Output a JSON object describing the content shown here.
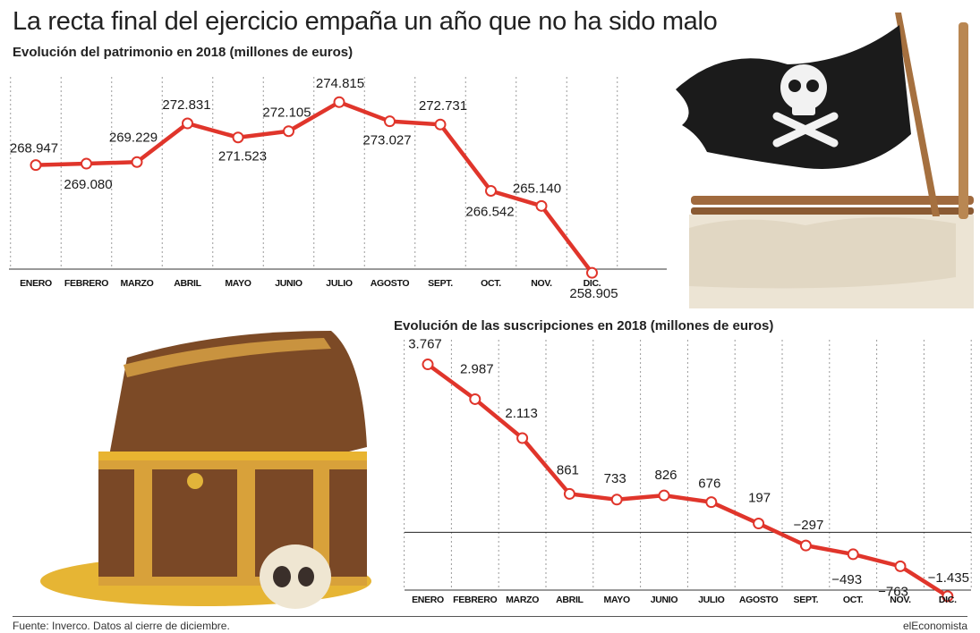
{
  "title": "La recta final del ejercicio empaña un año que no ha sido malo",
  "footer": {
    "source": "Fuente: Inverco. Datos al cierre de diciembre.",
    "brand": "elEconomista"
  },
  "illustrations": {
    "flag": "pirate-flag-icon",
    "chest": "treasure-chest-icon",
    "skull": "skull-icon"
  },
  "colors": {
    "line": "#e0352b",
    "marker_fill": "#ffffff",
    "grid": "#9a9a9a"
  },
  "chart_data": [
    {
      "type": "line",
      "title": "Evolución del patrimonio en 2018 (millones de euros)",
      "xlabel": "",
      "ylabel": "",
      "categories": [
        "ENERO",
        "FEBRERO",
        "MARZO",
        "ABRIL",
        "MAYO",
        "JUNIO",
        "JULIO",
        "AGOSTO",
        "SEPT.",
        "OCT.",
        "NOV.",
        "DIC."
      ],
      "values": [
        268947,
        269080,
        269229,
        272831,
        271523,
        272105,
        274815,
        273027,
        272731,
        266542,
        265140,
        258905
      ],
      "labels": [
        "268.947",
        "269.080",
        "269.229",
        "272.831",
        "271.523",
        "272.105",
        "274.815",
        "273.027",
        "272.731",
        "266.542",
        "265.140",
        "258.905"
      ],
      "ylim": [
        254500,
        276500
      ],
      "grid": "vertical-dotted"
    },
    {
      "type": "line",
      "title": "Evolución de las suscripciones en 2018 (millones de euros)",
      "xlabel": "",
      "ylabel": "",
      "categories": [
        "ENERO",
        "FEBRERO",
        "MARZO",
        "ABRIL",
        "MAYO",
        "JUNIO",
        "JULIO",
        "AGOSTO",
        "SEPT.",
        "OCT.",
        "NOV.",
        "DIC."
      ],
      "values": [
        3767,
        2987,
        2113,
        861,
        733,
        826,
        676,
        197,
        -297,
        -493,
        -763,
        -1435
      ],
      "labels": [
        "3.767",
        "2.987",
        "2.113",
        "861",
        "733",
        "826",
        "676",
        "197",
        "−297",
        "−493",
        "−763",
        "−1.435"
      ],
      "ylim": [
        -2280,
        4400
      ],
      "grid": "vertical-dotted"
    }
  ]
}
